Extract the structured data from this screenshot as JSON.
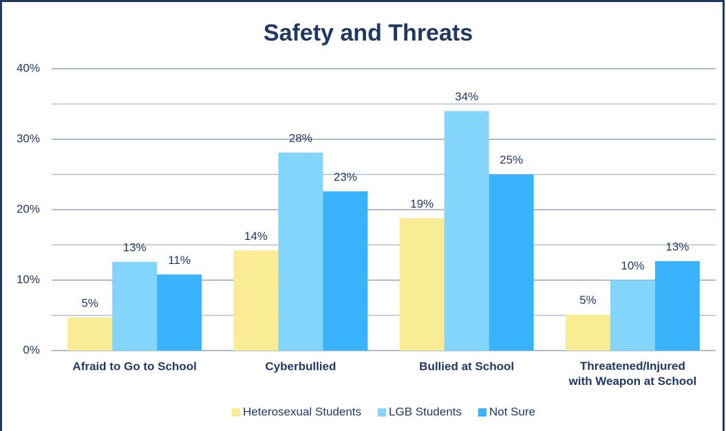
{
  "chart_data": {
    "type": "bar",
    "title": "Safety and Threats",
    "categories": [
      "Afraid to Go to School",
      "Cyberbullied",
      "Bullied at School",
      "Threatened/Injured with Weapon at School"
    ],
    "series": [
      {
        "name": "Heterosexual Students",
        "color": "#f9ec95",
        "values": [
          4.7,
          14.2,
          18.8,
          5.1
        ],
        "value_labels": [
          "5%",
          "14%",
          "19%",
          "5%"
        ]
      },
      {
        "name": "LGB Students",
        "color": "#84d5fc",
        "values": [
          12.6,
          28.1,
          34.0,
          10.0
        ],
        "value_labels": [
          "13%",
          "28%",
          "34%",
          "10%"
        ]
      },
      {
        "name": "Not Sure",
        "color": "#3bb3fc",
        "values": [
          10.8,
          22.6,
          25.0,
          12.7
        ],
        "value_labels": [
          "11%",
          "23%",
          "25%",
          "13%"
        ]
      }
    ],
    "ylim": [
      0,
      40
    ],
    "yticks": [
      {
        "value": 0,
        "label": "0%"
      },
      {
        "value": 10,
        "label": "10%"
      },
      {
        "value": 20,
        "label": "20%"
      },
      {
        "value": 30,
        "label": "30%"
      },
      {
        "value": 40,
        "label": "40%"
      }
    ],
    "minor_yticks": [
      5,
      15,
      25,
      35
    ],
    "grid": true,
    "legend": "bottom"
  }
}
